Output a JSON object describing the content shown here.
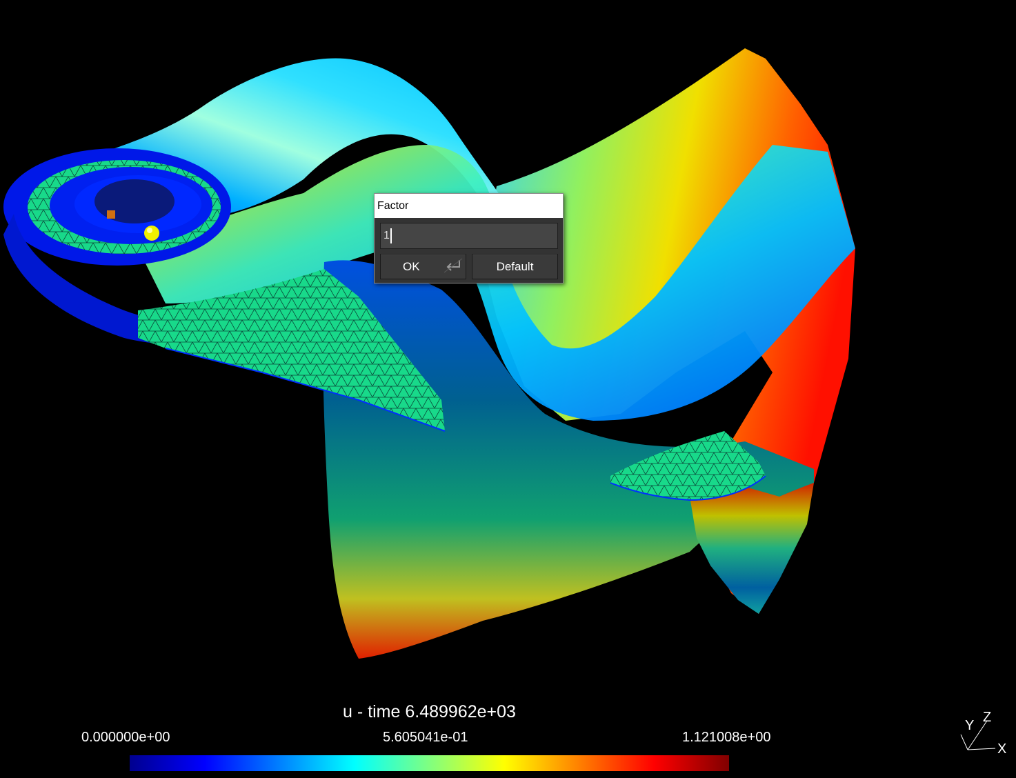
{
  "app": {
    "background_color": "#000000"
  },
  "dialog": {
    "title": "Factor",
    "input_value": "1",
    "ok_label": "OK",
    "default_label": "Default",
    "ok_icon": "enter-key-icon"
  },
  "legend": {
    "title": "u - time 6.489962e+03",
    "min_label": "0.000000e+00",
    "mid_label": "5.605041e-01",
    "max_label": "1.121008e+00",
    "colormap": [
      "#00008f",
      "#0000ff",
      "#0080ff",
      "#00ffff",
      "#80ff80",
      "#ffff00",
      "#ff8000",
      "#ff0000",
      "#800000"
    ]
  },
  "axes": {
    "x_label": "X",
    "y_label": "Y",
    "z_label": "Z"
  }
}
